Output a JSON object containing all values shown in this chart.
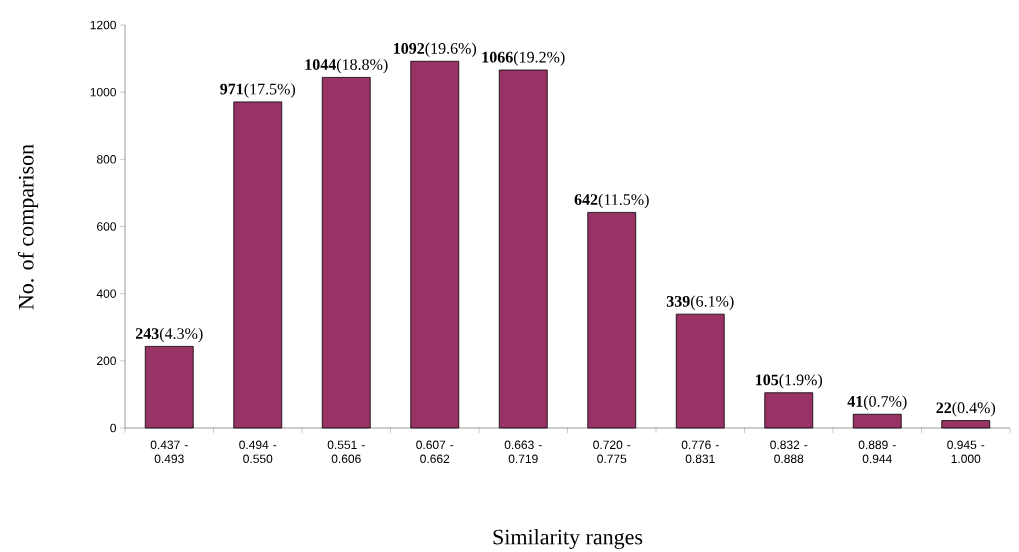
{
  "chart_data": {
    "type": "bar",
    "xlabel": "Similarity ranges",
    "ylabel": "No. of comparison",
    "categories": [
      "0.437 - 0.493",
      "0.494 - 0.550",
      "0.551 - 0.606",
      "0.607 - 0.662",
      "0.663 - 0.719",
      "0.720 - 0.775",
      "0.776 - 0.831",
      "0.832 - 0.888",
      "0.889 - 0.944",
      "0.945 - 1.000"
    ],
    "values": [
      243,
      971,
      1044,
      1092,
      1066,
      642,
      339,
      105,
      41,
      22
    ],
    "value_labels": [
      "**243**(4.3%)",
      "**971**(17.5%)",
      "**1044**(18.8%)",
      "**1092**(19.6%)",
      "**1066**(19.2%)",
      "**642**(11.5%)",
      "**339**(6.1%)",
      "**105**(1.9%)",
      "**41**(0.7%)",
      "**22**(0.4%)"
    ],
    "color": "#993366",
    "ylim": [
      0,
      1200
    ],
    "yticks": [
      0,
      200,
      400,
      600,
      800,
      1000,
      1200
    ]
  }
}
